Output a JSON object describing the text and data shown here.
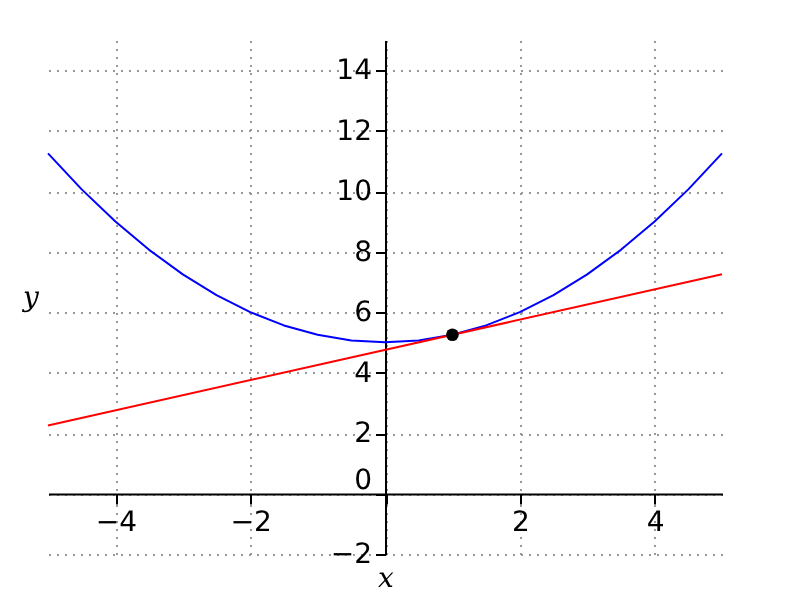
{
  "chart_data": {
    "type": "line",
    "xlabel": "x",
    "ylabel": "y",
    "xlim": [
      -5,
      5
    ],
    "ylim": [
      -2,
      15
    ],
    "xticks": [
      -4,
      -2,
      {
        "value": 0,
        "label": null
      },
      2,
      4
    ],
    "yticks": [
      -2,
      0,
      2,
      4,
      6,
      8,
      10,
      12,
      14
    ],
    "grid": true,
    "marker": "none",
    "line_style": "solid",
    "series": [
      {
        "color": "#0000ff",
        "x": [
          -5,
          -4.5,
          -4,
          -3.5,
          -3,
          -2.5,
          -2,
          -1.5,
          -1,
          -0.5,
          0,
          0.5,
          1,
          1.5,
          2,
          2.5,
          3,
          3.5,
          4,
          4.5,
          5
        ],
        "values": [
          11.25,
          10.06,
          9,
          8.06,
          7.25,
          6.56,
          6,
          5.56,
          5.25,
          5.06,
          5,
          5.06,
          5.25,
          5.56,
          6,
          6.56,
          7.25,
          8.06,
          9,
          10.06,
          11.25
        ]
      },
      {
        "color": "#ff0000",
        "x": [
          -5,
          5
        ],
        "values": [
          2.25,
          7.25
        ]
      },
      {
        "type": "scatter",
        "color": "#000000",
        "marker": "circle",
        "x": [
          1
        ],
        "values": [
          5.25
        ]
      }
    ]
  }
}
